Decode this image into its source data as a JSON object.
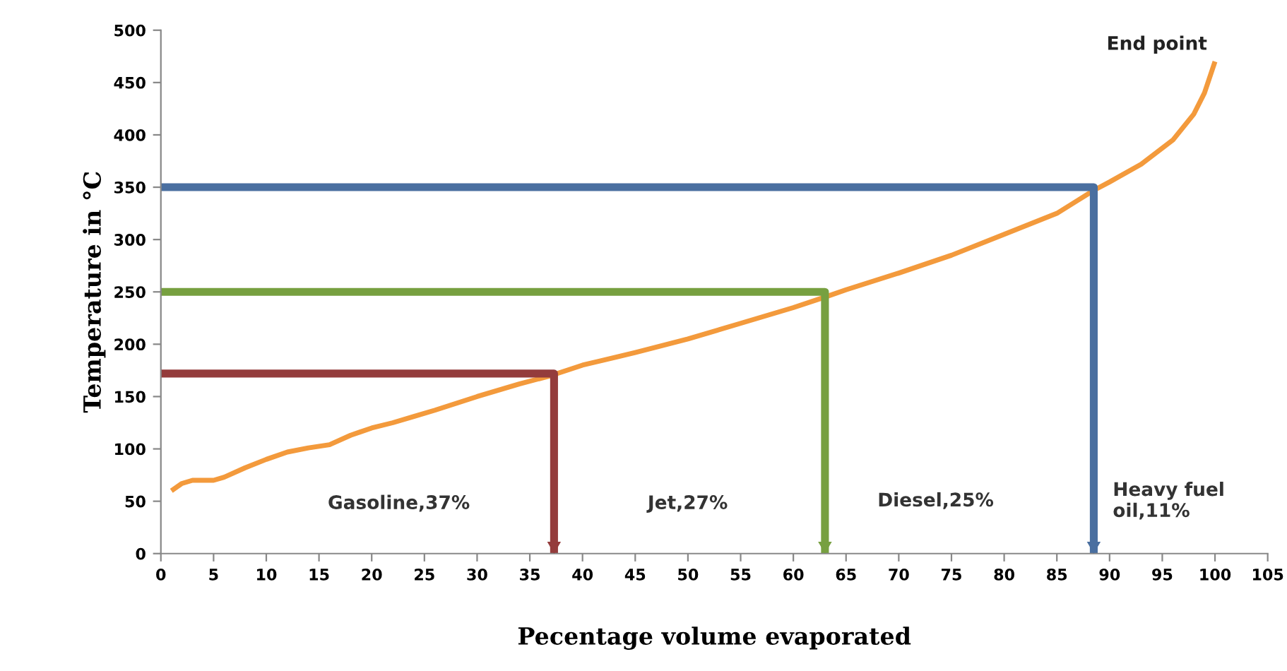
{
  "chart_data": {
    "type": "line",
    "xlabel": "Pecentage volume evaporated",
    "ylabel": "Temperature in °C",
    "xlim": [
      0,
      105
    ],
    "xticks": [
      0,
      5,
      10,
      15,
      20,
      25,
      30,
      35,
      40,
      45,
      50,
      55,
      60,
      65,
      70,
      75,
      80,
      85,
      90,
      95,
      100,
      105
    ],
    "ylim": [
      0,
      500
    ],
    "yticks": [
      0,
      50,
      100,
      150,
      200,
      250,
      300,
      350,
      400,
      450,
      500
    ],
    "grid": false,
    "legend": false,
    "marker": "none",
    "line_style": "solid",
    "series": [
      {
        "color": "#f39a3c",
        "x": [
          1,
          2,
          3,
          5,
          6,
          8,
          10,
          12,
          14,
          16,
          18,
          20,
          22,
          24,
          26,
          30,
          34,
          37,
          40,
          45,
          50,
          55,
          60,
          63,
          65,
          70,
          75,
          80,
          85,
          88.5,
          90,
          93,
          96,
          98,
          99,
          100
        ],
        "values": [
          60,
          67,
          70,
          70,
          73,
          82,
          90,
          97,
          101,
          104,
          113,
          120,
          125,
          131,
          137,
          150,
          162,
          170,
          180,
          192,
          205,
          220,
          235,
          245,
          252,
          268,
          285,
          305,
          325,
          347,
          355,
          372,
          395,
          420,
          440,
          470
        ]
      },
      {
        "color": "#943c3c",
        "x": [
          0,
          37.3,
          37.3
        ],
        "values": [
          172,
          172,
          0
        ]
      },
      {
        "color": "#77a040",
        "x": [
          0,
          63,
          63
        ],
        "values": [
          250,
          250,
          0
        ]
      },
      {
        "color": "#4a6fa0",
        "x": [
          0,
          88.5,
          88.5
        ],
        "values": [
          350,
          350,
          0
        ]
      }
    ],
    "annotations": [
      "Gasoline,37%",
      "Jet,27%",
      "Diesel,25%",
      "Heavy fuel\noil,11%",
      {
        "text": "End point",
        "x": 100,
        "y": 470
      }
    ]
  }
}
